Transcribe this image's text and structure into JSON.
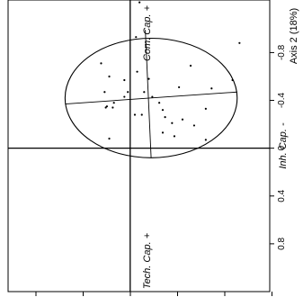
{
  "chart_data": {
    "type": "scatter",
    "title": "",
    "ylabel": "Axis 2 (18%)",
    "y_ticks": [
      {
        "value": -0.8,
        "label": "-0.8"
      },
      {
        "value": -0.4,
        "label": "-0.4"
      },
      {
        "value": 0,
        "label": "0"
      },
      {
        "value": 0.4,
        "label": "0.4"
      },
      {
        "value": 0.8,
        "label": "0.8"
      }
    ],
    "ylim": [
      -1.24,
      1.2
    ],
    "xlim": [
      -1.05,
      1.2
    ],
    "x_tick_count": 6,
    "annotations": {
      "com_cap": "Com. Cap. +",
      "tech_cap": "Tech. Cap. +",
      "inh_cap": "Inh. Cap. -"
    },
    "points": [
      {
        "x": 0.08,
        "y": -1.22
      },
      {
        "x": 0.05,
        "y": -0.93
      },
      {
        "x": -0.25,
        "y": -0.71
      },
      {
        "x": -0.18,
        "y": -0.6
      },
      {
        "x": -0.05,
        "y": -0.57
      },
      {
        "x": 0.06,
        "y": -0.64
      },
      {
        "x": 0.16,
        "y": -0.58
      },
      {
        "x": 0.52,
        "y": -0.69
      },
      {
        "x": 0.94,
        "y": -0.88
      },
      {
        "x": 0.88,
        "y": -0.57
      },
      {
        "x": 0.7,
        "y": -0.5
      },
      {
        "x": 0.42,
        "y": -0.51
      },
      {
        "x": 0.12,
        "y": -0.47
      },
      {
        "x": -0.02,
        "y": -0.47
      },
      {
        "x": -0.22,
        "y": -0.47
      },
      {
        "x": -0.05,
        "y": -0.43
      },
      {
        "x": 0.19,
        "y": -0.43
      },
      {
        "x": 0.25,
        "y": -0.38
      },
      {
        "x": -0.14,
        "y": -0.38
      },
      {
        "x": -0.2,
        "y": -0.35
      },
      {
        "x": -0.15,
        "y": -0.34
      },
      {
        "x": -0.21,
        "y": -0.34
      },
      {
        "x": 0.28,
        "y": -0.32
      },
      {
        "x": 0.65,
        "y": -0.33
      },
      {
        "x": 0.04,
        "y": -0.28
      },
      {
        "x": 0.1,
        "y": -0.28
      },
      {
        "x": 0.3,
        "y": -0.26
      },
      {
        "x": 0.45,
        "y": -0.24
      },
      {
        "x": 0.36,
        "y": -0.21
      },
      {
        "x": 0.55,
        "y": -0.19
      },
      {
        "x": 0.28,
        "y": -0.13
      },
      {
        "x": 0.38,
        "y": -0.1
      },
      {
        "x": -0.18,
        "y": -0.08
      },
      {
        "x": 0.65,
        "y": -0.07
      }
    ],
    "ellipse": {
      "cx": 0.18,
      "cy": -0.42,
      "rx": 0.74,
      "ry": 0.5
    },
    "ellipse_axes": [
      {
        "from": {
          "x": 0.13,
          "y": -0.99
        },
        "to": {
          "x": 0.18,
          "y": 0.08
        }
      },
      {
        "from": {
          "x": -0.56,
          "y": -0.37
        },
        "to": {
          "x": 0.92,
          "y": -0.47
        }
      }
    ]
  }
}
